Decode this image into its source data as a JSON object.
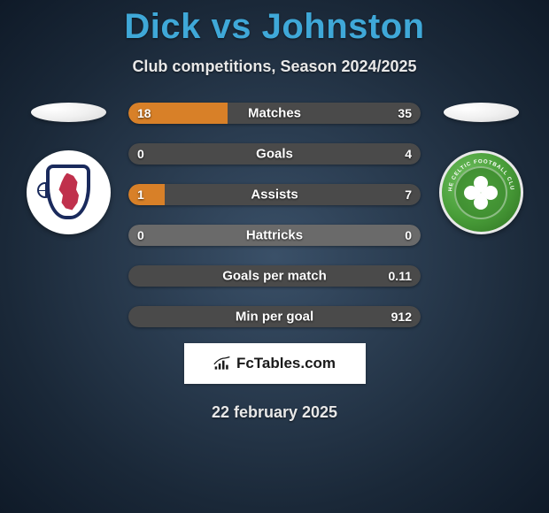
{
  "title": "Dick vs Johnston",
  "subtitle": "Club competitions, Season 2024/2025",
  "date": "22 february 2025",
  "attribution": "FcTables.com",
  "colors": {
    "left_fill": "#d88028",
    "right_fill": "#4a4a4a",
    "neutral_fill": "#6a6a6a",
    "title_color": "#3fa8d8"
  },
  "stats": [
    {
      "label": "Matches",
      "left_value": "18",
      "right_value": "35",
      "left_num": 18,
      "right_num": 35,
      "left_pct": 33.96,
      "right_pct": 66.04
    },
    {
      "label": "Goals",
      "left_value": "0",
      "right_value": "4",
      "left_num": 0,
      "right_num": 4,
      "left_pct": 0,
      "right_pct": 100
    },
    {
      "label": "Assists",
      "left_value": "1",
      "right_value": "7",
      "left_num": 1,
      "right_num": 7,
      "left_pct": 12.5,
      "right_pct": 87.5
    },
    {
      "label": "Hattricks",
      "left_value": "0",
      "right_value": "0",
      "left_num": 0,
      "right_num": 0,
      "left_pct": 0,
      "right_pct": 0
    },
    {
      "label": "Goals per match",
      "left_value": "",
      "right_value": "0.11",
      "left_num": 0,
      "right_num": 0.11,
      "left_pct": 0,
      "right_pct": 100
    },
    {
      "label": "Min per goal",
      "left_value": "",
      "right_value": "912",
      "left_num": 0,
      "right_num": 912,
      "left_pct": 0,
      "right_pct": 100
    }
  ]
}
